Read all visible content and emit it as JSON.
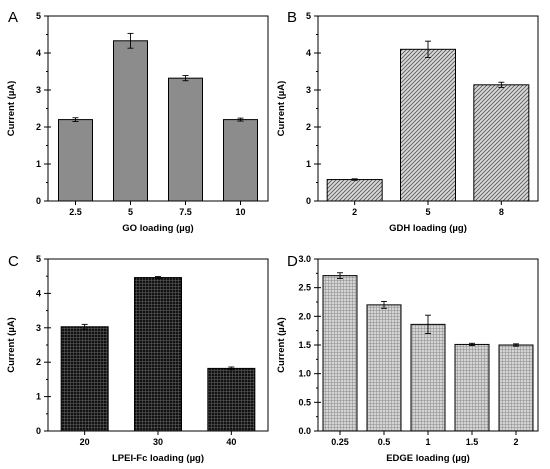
{
  "chart_data": [
    {
      "panel": "A",
      "type": "bar",
      "categories": [
        "2.5",
        "5",
        "7.5",
        "10"
      ],
      "values": [
        2.2,
        4.33,
        3.32,
        2.2
      ],
      "errors": [
        0.05,
        0.2,
        0.07,
        0.04
      ],
      "xlabel": "GO loading (µg)",
      "ylabel": "Current (µA)",
      "ylim": [
        0,
        5
      ],
      "yticks": [
        "0",
        "1",
        "2",
        "3",
        "4",
        "5"
      ],
      "fill": "#8c8c8c",
      "pattern": "solid"
    },
    {
      "panel": "B",
      "type": "bar",
      "categories": [
        "2",
        "5",
        "8"
      ],
      "values": [
        0.58,
        4.1,
        3.14
      ],
      "errors": [
        0.02,
        0.22,
        0.07
      ],
      "xlabel": "GDH loading (µg)",
      "ylabel": "Current (µA)",
      "ylim": [
        0,
        5
      ],
      "yticks": [
        "0",
        "1",
        "2",
        "3",
        "4",
        "5"
      ],
      "fill": "#d0d0d0",
      "pattern": "diagonal"
    },
    {
      "panel": "C",
      "type": "bar",
      "categories": [
        "20",
        "30",
        "40"
      ],
      "values": [
        3.03,
        4.46,
        1.82
      ],
      "errors": [
        0.07,
        0.03,
        0.04
      ],
      "xlabel": "LPEI-Fc loading (µg)",
      "ylabel": "Current (µA)",
      "ylim": [
        0,
        5
      ],
      "yticks": [
        "0",
        "1",
        "2",
        "3",
        "4",
        "5"
      ],
      "fill": "#1c1c1c",
      "pattern": "grid-dark"
    },
    {
      "panel": "D",
      "type": "bar",
      "categories": [
        "0.25",
        "0.5",
        "1",
        "1.5",
        "2"
      ],
      "values": [
        2.71,
        2.2,
        1.86,
        1.51,
        1.5
      ],
      "errors": [
        0.05,
        0.06,
        0.16,
        0.02,
        0.02
      ],
      "xlabel": "EDGE loading (µg)",
      "ylabel": "Current (µA)",
      "ylim": [
        0,
        3.0
      ],
      "yticks": [
        "0.0",
        "0.5",
        "1.0",
        "1.5",
        "2.0",
        "2.5",
        "3.0"
      ],
      "fill": "#c8c8c8",
      "pattern": "grid-light"
    }
  ]
}
